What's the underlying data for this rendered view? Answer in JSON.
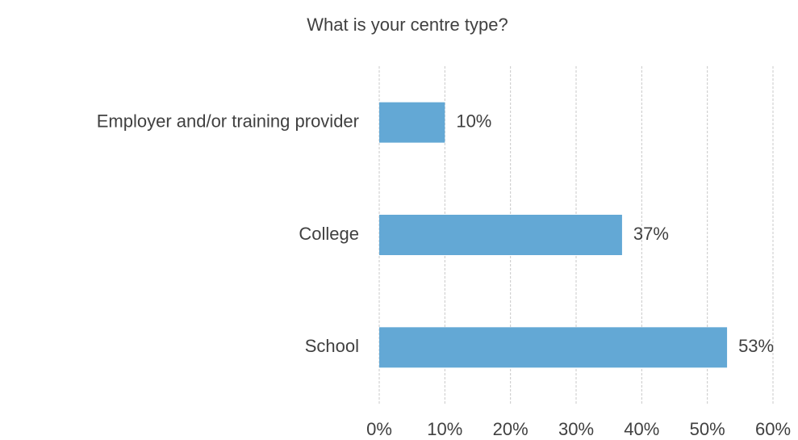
{
  "chart_data": {
    "type": "hbar",
    "title": "What is your centre type?",
    "categories": [
      "Employer and/or training provider",
      "College",
      "School"
    ],
    "values": [
      10,
      37,
      53
    ],
    "value_labels": [
      "10%",
      "37%",
      "53%"
    ],
    "color": "#63a8d5",
    "xlim": [
      0,
      60
    ],
    "xticks": [
      {
        "value": 0,
        "label": "0%"
      },
      {
        "value": 10,
        "label": "10%"
      },
      {
        "value": 20,
        "label": "20%"
      },
      {
        "value": 30,
        "label": "30%"
      },
      {
        "value": 40,
        "label": "40%"
      },
      {
        "value": 50,
        "label": "50%"
      },
      {
        "value": 60,
        "label": "60%"
      }
    ],
    "grid": true
  }
}
